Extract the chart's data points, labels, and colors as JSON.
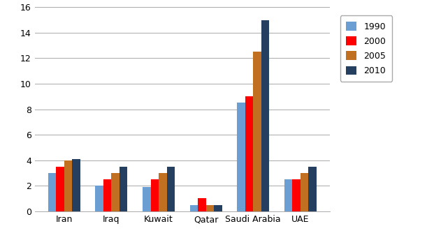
{
  "categories": [
    "Iran",
    "Iraq",
    "Kuwait",
    "Qatar",
    "Saudi Arabia",
    "UAE"
  ],
  "series": {
    "1990": [
      3.0,
      2.0,
      1.9,
      0.5,
      8.5,
      2.5
    ],
    "2000": [
      3.5,
      2.5,
      2.5,
      1.0,
      9.0,
      2.5
    ],
    "2005": [
      4.0,
      3.0,
      3.0,
      0.5,
      12.5,
      3.0
    ],
    "2010": [
      4.1,
      3.5,
      3.5,
      0.5,
      15.0,
      3.5
    ]
  },
  "series_order": [
    "1990",
    "2000",
    "2005",
    "2010"
  ],
  "colors": {
    "1990": "#6B9FD4",
    "2000": "#FF0000",
    "2005": "#C07020",
    "2010": "#243F60"
  },
  "ylim": [
    0,
    16
  ],
  "yticks": [
    0,
    2,
    4,
    6,
    8,
    10,
    12,
    14,
    16
  ],
  "background_color": "#FFFFFF",
  "grid_color": "#AAAAAA",
  "bar_width": 0.17,
  "legend_fontsize": 9,
  "tick_fontsize": 9
}
